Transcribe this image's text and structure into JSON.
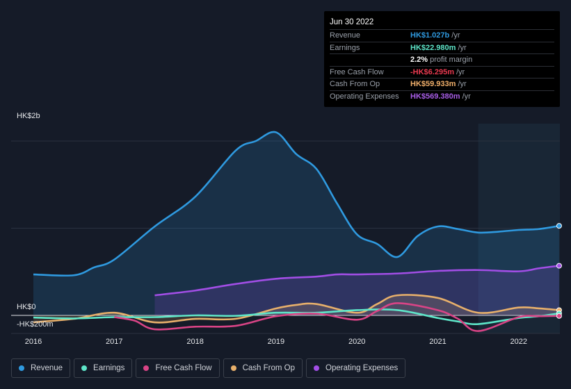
{
  "tooltip": {
    "date": "Jun 30 2022",
    "rows": [
      {
        "label": "Revenue",
        "value": "HK$1.027b",
        "unit": "/yr",
        "color": "#2f9ae0"
      },
      {
        "label": "Earnings",
        "value": "HK$22.980m",
        "unit": "/yr",
        "color": "#5ee6c9"
      },
      {
        "label": "",
        "value": "2.2%",
        "unit": "profit margin",
        "color": "#ffffff"
      },
      {
        "label": "Free Cash Flow",
        "value": "-HK$6.295m",
        "unit": "/yr",
        "color": "#e8394f"
      },
      {
        "label": "Cash From Op",
        "value": "HK$59.933m",
        "unit": "/yr",
        "color": "#f2b06b"
      },
      {
        "label": "Operating Expenses",
        "value": "HK$569.380m",
        "unit": "/yr",
        "color": "#a95ee8"
      }
    ]
  },
  "legend": [
    {
      "label": "Revenue",
      "color": "#2f9ae0"
    },
    {
      "label": "Earnings",
      "color": "#5ee6c9"
    },
    {
      "label": "Free Cash Flow",
      "color": "#d94486"
    },
    {
      "label": "Cash From Op",
      "color": "#e8b06b"
    },
    {
      "label": "Operating Expenses",
      "color": "#a24ee6"
    }
  ],
  "chart_data": {
    "type": "line",
    "y_unit_label": "HK$ millions",
    "y_tick_labels": [
      "HK$2b",
      "HK$0",
      "-HK$200m"
    ],
    "x_tick_labels": [
      "2016",
      "2017",
      "2018",
      "2019",
      "2020",
      "2021",
      "2022"
    ],
    "ylim": [
      -200,
      2200
    ],
    "forecast_shade_start": 2021.5,
    "series": [
      {
        "name": "Revenue",
        "color": "#2f9ae0",
        "fill": true,
        "x": [
          2016.0,
          2016.5,
          2016.75,
          2017.0,
          2017.5,
          2018.0,
          2018.5,
          2018.75,
          2019.0,
          2019.25,
          2019.5,
          2019.75,
          2020.0,
          2020.25,
          2020.5,
          2020.75,
          2021.0,
          2021.25,
          2021.5,
          2021.75,
          2022.0,
          2022.25,
          2022.5
        ],
        "y": [
          470,
          460,
          550,
          640,
          1020,
          1360,
          1890,
          2000,
          2100,
          1850,
          1680,
          1290,
          930,
          820,
          670,
          910,
          1020,
          990,
          950,
          960,
          980,
          990,
          1027
        ]
      },
      {
        "name": "Operating Expenses",
        "color": "#a24ee6",
        "fill": true,
        "x": [
          2017.5,
          2018.0,
          2018.5,
          2019.0,
          2019.5,
          2019.75,
          2020.0,
          2020.5,
          2021.0,
          2021.5,
          2022.0,
          2022.25,
          2022.5
        ],
        "y": [
          230,
          285,
          360,
          420,
          445,
          470,
          470,
          480,
          510,
          520,
          505,
          540,
          569
        ]
      },
      {
        "name": "Cash From Op",
        "color": "#e8b06b",
        "fill": true,
        "x": [
          2016.0,
          2016.5,
          2017.0,
          2017.5,
          2018.0,
          2018.5,
          2019.0,
          2019.25,
          2019.5,
          2020.0,
          2020.25,
          2020.5,
          2021.0,
          2021.5,
          2022.0,
          2022.25,
          2022.5
        ],
        "y": [
          -80,
          -40,
          30,
          -80,
          -40,
          -40,
          80,
          120,
          130,
          30,
          130,
          230,
          200,
          30,
          90,
          80,
          60
        ]
      },
      {
        "name": "Earnings",
        "color": "#5ee6c9",
        "fill": false,
        "x": [
          2016.0,
          2016.5,
          2017.0,
          2017.5,
          2018.0,
          2018.5,
          2019.0,
          2019.5,
          2020.0,
          2020.5,
          2021.0,
          2021.25,
          2021.5,
          2022.0,
          2022.25,
          2022.5
        ],
        "y": [
          -25,
          -35,
          -20,
          -20,
          0,
          -5,
          30,
          30,
          60,
          60,
          -30,
          -70,
          -100,
          -30,
          -10,
          23
        ]
      },
      {
        "name": "Free Cash Flow",
        "color": "#d94486",
        "fill": false,
        "x": [
          2017.0,
          2017.25,
          2017.5,
          2018.0,
          2018.5,
          2019.0,
          2019.5,
          2020.0,
          2020.25,
          2020.5,
          2021.0,
          2021.25,
          2021.5,
          2022.0,
          2022.25,
          2022.5
        ],
        "y": [
          -20,
          -60,
          -160,
          -130,
          -120,
          -10,
          20,
          -50,
          50,
          140,
          60,
          -40,
          -180,
          -20,
          -10,
          -6
        ]
      }
    ]
  }
}
